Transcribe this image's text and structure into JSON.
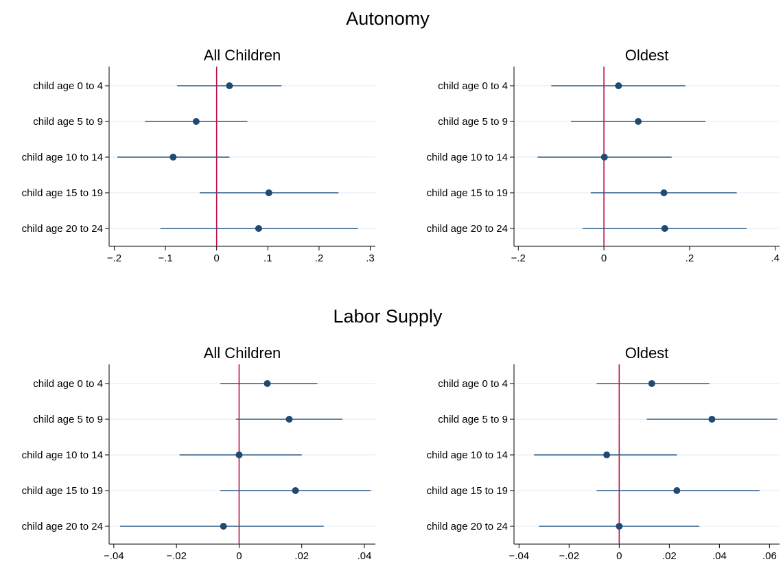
{
  "colors": {
    "marker": "#1f4a73",
    "ci_line": "#2c5a86",
    "zero_line": "#c0124e",
    "grid": "#e8eef3",
    "axis": "#000000",
    "background": "#ffffff"
  },
  "sections": [
    {
      "title": "Autonomy"
    },
    {
      "title": "Labor Supply"
    }
  ],
  "chart_data": [
    {
      "type": "coefficient-plot",
      "section": "Autonomy",
      "title": "All Children",
      "categories": [
        "child age 0 to 4",
        "child age 5 to 9",
        "child age 10 to 14",
        "child age 15 to 19",
        "child age 20 to 24"
      ],
      "estimates": [
        0.025,
        -0.04,
        -0.085,
        0.102,
        0.082
      ],
      "ci_low": [
        -0.077,
        -0.14,
        -0.194,
        -0.033,
        -0.11
      ],
      "ci_high": [
        0.127,
        0.06,
        0.025,
        0.238,
        0.276
      ],
      "xlim": [
        -0.21,
        0.31
      ],
      "ticks": [
        -0.2,
        -0.1,
        0,
        0.1,
        0.2,
        0.3
      ],
      "tick_labels": [
        "−.2",
        "−.1",
        "0",
        ".1",
        ".2",
        ".3"
      ],
      "reference_line": 0,
      "grid": true
    },
    {
      "type": "coefficient-plot",
      "section": "Autonomy",
      "title": "Oldest",
      "categories": [
        "child age 0 to 4",
        "child age 5 to 9",
        "child age 10 to 14",
        "child age 15 to 19",
        "child age 20 to 24"
      ],
      "estimates": [
        0.034,
        0.08,
        0.001,
        0.14,
        0.142
      ],
      "ci_low": [
        -0.123,
        -0.077,
        -0.155,
        -0.031,
        -0.05
      ],
      "ci_high": [
        0.19,
        0.237,
        0.158,
        0.31,
        0.333
      ],
      "xlim": [
        -0.21,
        0.41
      ],
      "ticks": [
        -0.2,
        0,
        0.2,
        0.4
      ],
      "tick_labels": [
        "−.2",
        "0",
        ".2",
        ".4"
      ],
      "reference_line": 0,
      "grid": true
    },
    {
      "type": "coefficient-plot",
      "section": "Labor Supply",
      "title": "All Children",
      "categories": [
        "child age 0 to 4",
        "child age 5 to 9",
        "child age 10 to 14",
        "child age 15 to 19",
        "child age 20 to 24"
      ],
      "estimates": [
        0.009,
        0.016,
        0.0,
        0.018,
        -0.005
      ],
      "ci_low": [
        -0.006,
        -0.001,
        -0.019,
        -0.006,
        -0.038
      ],
      "ci_high": [
        0.025,
        0.033,
        0.02,
        0.042,
        0.027
      ],
      "xlim": [
        -0.0415,
        0.0435
      ],
      "ticks": [
        -0.04,
        -0.02,
        0,
        0.02,
        0.04
      ],
      "tick_labels": [
        "−.04",
        "−.02",
        "0",
        ".02",
        ".04"
      ],
      "reference_line": 0,
      "grid": true
    },
    {
      "type": "coefficient-plot",
      "section": "Labor Supply",
      "title": "Oldest",
      "categories": [
        "child age 0 to 4",
        "child age 5 to 9",
        "child age 10 to 14",
        "child age 15 to 19",
        "child age 20 to 24"
      ],
      "estimates": [
        0.013,
        0.037,
        -0.005,
        0.023,
        0.0
      ],
      "ci_low": [
        -0.009,
        0.011,
        -0.034,
        -0.009,
        -0.032
      ],
      "ci_high": [
        0.036,
        0.063,
        0.023,
        0.056,
        0.032
      ],
      "xlim": [
        -0.042,
        0.064
      ],
      "ticks": [
        -0.04,
        -0.02,
        0,
        0.02,
        0.04,
        0.06
      ],
      "tick_labels": [
        "−.04",
        "−.02",
        "0",
        ".02",
        ".04",
        ".06"
      ],
      "reference_line": 0,
      "grid": true
    }
  ]
}
